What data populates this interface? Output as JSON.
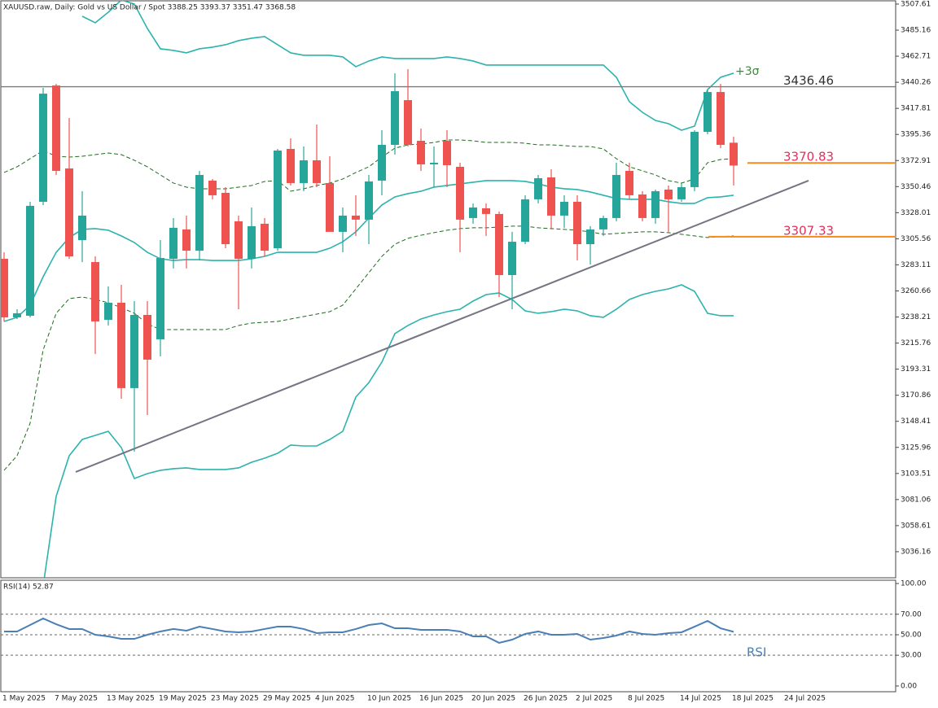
{
  "chart_data": [
    {
      "type": "candlestick",
      "title": "XAUUSD.raw, Daily:  Gold vs US Dollar / Spot  3388.25 3393.37 3351.47 3368.58",
      "categories": [
        "1 May 2025",
        null,
        null,
        null,
        "7 May 2025",
        null,
        null,
        null,
        "13 May 2025",
        null,
        null,
        null,
        "19 May 2025",
        null,
        null,
        null,
        "23 May 2025",
        null,
        null,
        null,
        "29 May 2025",
        null,
        null,
        null,
        "4 Jun 2025",
        null,
        null,
        null,
        "10 Jun 2025",
        null,
        null,
        null,
        "16 Jun 2025",
        null,
        null,
        null,
        "20 Jun 2025",
        null,
        null,
        null,
        "26 Jun 2025",
        null,
        null,
        null,
        "2 Jul 2025",
        null,
        null,
        null,
        "8 Jul 2025",
        null,
        null,
        null,
        "14 Jul 2025",
        null,
        null,
        null,
        "18 Jul 2025",
        null,
        null,
        null,
        "24 Jul 2025"
      ],
      "open": [
        3288.3,
        3237.9,
        3239.3,
        3337.4,
        3437.5,
        3366.1,
        3304.4,
        3285.5,
        3235.8,
        3250.5,
        3177.0,
        3240.0,
        3219.0,
        3288.3,
        3313.6,
        3295.3,
        3355.6,
        3345.1,
        3320.6,
        3288.3,
        3318.5,
        3297.4,
        3382.9,
        3353.5,
        3373.1,
        3353.5,
        3311.5,
        3325.5,
        3322.0,
        3355.6,
        3386.4,
        3424.9,
        3389.9,
        3369.6,
        3389.9,
        3367.5,
        3323.4,
        3331.8,
        3326.9,
        3274.3,
        3303.0,
        3339.5,
        3358.4,
        3325.5,
        3337.4,
        3300.9,
        3313.6,
        3323.4,
        3364.0,
        3343.7,
        3323.4,
        3347.9,
        3339.5,
        3350.0,
        3397.6,
        3431.9,
        3388.25,
        null,
        null,
        null,
        null
      ],
      "high": [
        3293.9,
        3244.9,
        3337.4,
        3435.4,
        3438.9,
        3409.5,
        3346.5,
        3290.4,
        3264.5,
        3265.9,
        3251.9,
        3251.9,
        3304.4,
        3323.4,
        3325.5,
        3364.0,
        3357.0,
        3350.0,
        3325.5,
        3332.5,
        3323.4,
        3382.9,
        3392.0,
        3385.0,
        3403.9,
        3376.6,
        3332.5,
        3343.0,
        3360.5,
        3399.0,
        3448.0,
        3451.6,
        3400.4,
        3385.0,
        3399.0,
        3371.0,
        3336.0,
        3336.0,
        3329.0,
        3311.5,
        3343.0,
        3360.5,
        3365.4,
        3343.0,
        3343.0,
        3316.4,
        3325.5,
        3371.0,
        3371.0,
        3346.5,
        3347.9,
        3351.4,
        3353.5,
        3399.0,
        3434.0,
        3438.9,
        3393.37,
        null,
        null,
        null,
        null
      ],
      "low": [
        3234.4,
        3236.5,
        3237.9,
        3334.6,
        3360.5,
        3288.3,
        3285.5,
        3206.4,
        3230.9,
        3167.8,
        3122.3,
        3153.8,
        3204.3,
        3280.0,
        3280.0,
        3287.0,
        3339.5,
        3297.4,
        3244.9,
        3280.0,
        3290.4,
        3295.3,
        3351.4,
        3346.5,
        3350.0,
        3311.5,
        3293.9,
        3308.0,
        3300.9,
        3343.0,
        3378.0,
        3385.0,
        3364.0,
        3350.0,
        3350.0,
        3293.9,
        3318.5,
        3308.0,
        3255.4,
        3244.9,
        3300.9,
        3336.0,
        3313.6,
        3315.0,
        3287.0,
        3283.4,
        3308.0,
        3320.6,
        3339.5,
        3320.6,
        3318.5,
        3311.5,
        3337.4,
        3346.5,
        3395.5,
        3383.6,
        3351.47,
        null,
        null,
        null,
        null
      ],
      "close": [
        3237.9,
        3241.4,
        3333.9,
        3430.5,
        3364.0,
        3290.4,
        3325.5,
        3234.4,
        3250.5,
        3177.0,
        3240.0,
        3201.5,
        3289.0,
        3315.0,
        3295.3,
        3360.5,
        3343.0,
        3300.9,
        3288.3,
        3316.4,
        3295.3,
        3381.5,
        3353.5,
        3373.1,
        3353.5,
        3311.5,
        3325.5,
        3322.0,
        3354.9,
        3386.4,
        3432.6,
        3386.4,
        3369.6,
        3371.0,
        3368.9,
        3322.0,
        3332.5,
        3326.9,
        3274.3,
        3303.0,
        3339.5,
        3357.7,
        3325.5,
        3337.4,
        3300.9,
        3313.6,
        3323.4,
        3360.5,
        3343.0,
        3323.4,
        3346.5,
        3339.5,
        3350.0,
        3397.6,
        3431.9,
        3386.4,
        3368.58,
        null,
        null,
        null,
        null
      ],
      "up_color": "#26a69a",
      "down_color": "#ef5350",
      "series": [
        {
          "name": "+3σ",
          "color": "#2cb3ad",
          "dash": false,
          "values": [
            null,
            null,
            null,
            null,
            null,
            null,
            3497.1,
            3491.5,
            3500.6,
            3511.1,
            3507.6,
            3486.6,
            3469.1,
            3467.7,
            3465.6,
            3469.1,
            3470.5,
            3472.6,
            3476.1,
            3478.2,
            3479.6,
            3472.6,
            3465.6,
            3463.5,
            3463.5,
            3463.5,
            3462.1,
            3453.7,
            3458.6,
            3462.1,
            3460.7,
            3460.7,
            3460.7,
            3460.7,
            3462.1,
            3460.7,
            3458.6,
            3455.1,
            3455.1,
            3455.1,
            3455.1,
            3455.1,
            3455.1,
            3455.1,
            3455.1,
            3455.1,
            3455.1,
            3444.6,
            3423.5,
            3414.4,
            3407.4,
            3404.6,
            3399.0,
            3402.5,
            3434.0,
            3444.6,
            3448.1,
            null,
            null,
            null,
            null
          ]
        },
        {
          "color": "#1f6b1f",
          "dash": true,
          "values": [
            3362.6,
            3367.5,
            3374.5,
            3381.5,
            3376.6,
            3375.9,
            3376.6,
            3378.0,
            3379.4,
            3378.0,
            3373.1,
            3367.5,
            3360.5,
            3353.5,
            3350.0,
            3348.6,
            3348.6,
            3348.6,
            3350.0,
            3351.4,
            3354.9,
            3355.6,
            3346.5,
            3348.6,
            3351.4,
            3353.5,
            3357.0,
            3362.6,
            3367.5,
            3375.9,
            3383.6,
            3386.4,
            3387.1,
            3388.5,
            3390.6,
            3390.6,
            3389.9,
            3388.5,
            3388.5,
            3388.5,
            3387.8,
            3386.4,
            3386.4,
            3385.7,
            3385.0,
            3385.0,
            3382.9,
            3374.5,
            3367.5,
            3364.0,
            3360.5,
            3355.6,
            3353.5,
            3357.0,
            3371.0,
            3373.8,
            3374.5,
            null,
            null,
            null,
            null
          ]
        },
        {
          "color": "#2cb3ad",
          "dash": false,
          "values": [
            3234.4,
            3237.9,
            3248.4,
            3272.9,
            3293.9,
            3306.6,
            3313.6,
            3314.3,
            3312.9,
            3308.0,
            3302.3,
            3293.9,
            3288.3,
            3286.9,
            3287.6,
            3287.6,
            3286.9,
            3286.9,
            3286.9,
            3288.3,
            3290.4,
            3293.9,
            3293.9,
            3293.9,
            3293.9,
            3297.4,
            3303.0,
            3311.5,
            3323.4,
            3334.6,
            3341.6,
            3344.4,
            3346.5,
            3350.0,
            3351.4,
            3352.8,
            3354.2,
            3355.6,
            3355.6,
            3355.6,
            3354.9,
            3352.8,
            3350.0,
            3348.6,
            3347.9,
            3345.8,
            3343.0,
            3340.2,
            3339.5,
            3339.5,
            3339.5,
            3337.4,
            3336.0,
            3336.0,
            3340.9,
            3341.6,
            3343.0,
            null,
            null,
            null,
            null
          ]
        },
        {
          "color": "#1f6b1f",
          "dash": true,
          "values": [
            3106.2,
            3118.8,
            3146.8,
            3209.9,
            3241.4,
            3254.0,
            3255.4,
            3253.3,
            3250.5,
            3246.3,
            3241.4,
            3232.3,
            3227.4,
            3227.4,
            3227.4,
            3227.4,
            3227.4,
            3227.4,
            3230.9,
            3233.0,
            3233.7,
            3234.4,
            3236.5,
            3238.6,
            3240.7,
            3242.8,
            3248.4,
            3262.4,
            3276.4,
            3290.4,
            3300.9,
            3305.9,
            3308.6,
            3310.8,
            3312.9,
            3314.3,
            3315.0,
            3315.0,
            3315.7,
            3316.4,
            3316.4,
            3315.0,
            3314.3,
            3313.6,
            3312.9,
            3311.5,
            3309.4,
            3310.1,
            3310.8,
            3311.5,
            3311.5,
            3310.8,
            3309.4,
            3308.0,
            3306.6,
            3307.3,
            3308.0,
            null,
            null,
            null,
            null
          ]
        },
        {
          "color": "#2cb3ad",
          "dash": false,
          "values": [
            null,
            null,
            null,
            3006.7,
            3083.8,
            3118.8,
            3132.8,
            3136.3,
            3139.8,
            3125.8,
            3099.2,
            3103.4,
            3106.2,
            3107.6,
            3108.3,
            3106.9,
            3106.9,
            3106.9,
            3108.3,
            3113.2,
            3116.7,
            3120.9,
            3127.9,
            3127.2,
            3127.2,
            3132.8,
            3139.8,
            3169.3,
            3181.7,
            3199.4,
            3223.9,
            3230.9,
            3236.5,
            3240.0,
            3242.8,
            3244.9,
            3251.9,
            3257.5,
            3258.9,
            3253.3,
            3243.5,
            3241.4,
            3242.8,
            3244.9,
            3243.5,
            3239.3,
            3237.9,
            3244.9,
            3253.3,
            3257.5,
            3260.3,
            3262.4,
            3265.9,
            3260.3,
            3241.4,
            3239.3,
            3239.3,
            null,
            null,
            null,
            null
          ]
        }
      ],
      "hlines": [
        {
          "value": 3436.46,
          "color": "#7a7a7a",
          "label_color": "#333333"
        },
        {
          "value": 3370.83,
          "color": "#f28c1e",
          "label_color": "#e0305a"
        },
        {
          "value": 3307.33,
          "color": "#f28c1e",
          "label_color": "#e0305a"
        }
      ],
      "trendline": {
        "values": [
          3104.8,
          3355.6
        ],
        "color": "#747484"
      },
      "ylim": [
        3013.7,
        3510.4
      ],
      "yticks": [
        3507.61,
        3485.16,
        3462.71,
        3440.26,
        3417.81,
        3395.36,
        3372.91,
        3350.46,
        3328.01,
        3305.56,
        3283.11,
        3260.66,
        3238.21,
        3215.76,
        3193.31,
        3170.86,
        3148.41,
        3125.96,
        3103.51,
        3081.06,
        3058.61,
        3036.16
      ]
    },
    {
      "type": "line",
      "title": "RSI(14) 52.87",
      "series": [
        {
          "name": "RSI",
          "color": "#4a7fb5",
          "values": [
            53.2,
            53.2,
            59.5,
            65.9,
            60.3,
            55.6,
            55.6,
            50.0,
            48.4,
            46.0,
            46.0,
            50.0,
            53.2,
            55.6,
            54.0,
            57.9,
            55.6,
            53.2,
            52.4,
            53.2,
            55.6,
            57.9,
            57.9,
            55.6,
            51.6,
            52.4,
            52.4,
            55.6,
            59.5,
            61.1,
            56.3,
            56.3,
            54.8,
            54.8,
            54.8,
            53.2,
            48.4,
            48.4,
            42.1,
            45.2,
            50.8,
            53.2,
            50.0,
            50.0,
            50.8,
            45.2,
            46.8,
            49.2,
            53.2,
            50.8,
            50.0,
            51.6,
            52.4,
            57.9,
            63.5,
            56.3,
            52.87,
            null,
            null,
            null,
            null
          ]
        }
      ],
      "levels": [
        70,
        50,
        30
      ],
      "ylim": [
        -5.6,
        103.2
      ],
      "yticks": [
        {
          "value": 100,
          "label": "100.00"
        },
        {
          "value": 70,
          "label": "70.00"
        },
        {
          "value": 50,
          "label": "50.00"
        },
        {
          "value": 30,
          "label": "30.00"
        },
        {
          "value": 0,
          "label": "0.00"
        }
      ]
    }
  ]
}
